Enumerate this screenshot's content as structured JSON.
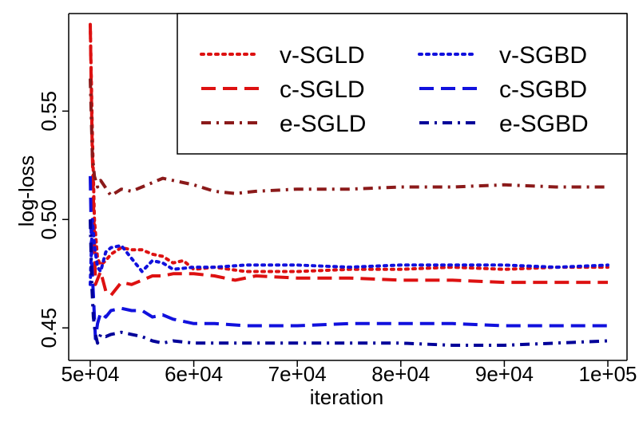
{
  "chart_data": {
    "type": "line",
    "title": "",
    "xlabel": "iteration",
    "ylabel": "log-loss",
    "xlim": [
      50000,
      100000
    ],
    "ylim": [
      0.435,
      0.595
    ],
    "x_ticks": [
      50000,
      60000,
      70000,
      80000,
      90000,
      100000
    ],
    "x_tick_labels": [
      "5e+04",
      "6e+04",
      "7e+04",
      "8e+04",
      "9e+04",
      "1e+05"
    ],
    "y_ticks": [
      0.45,
      0.5,
      0.55
    ],
    "y_tick_labels": [
      "0.45",
      "0.50",
      "0.55"
    ],
    "legend_position": "top-right",
    "colors": {
      "red": "#dd1111",
      "darkred": "#8b1a1a",
      "blue": "#1111dd",
      "navy": "#000099"
    },
    "series": [
      {
        "name": "v-SGLD",
        "color": "#dd1111",
        "style": "dotted",
        "x": [
          50000,
          50200,
          50400,
          50700,
          51000,
          51500,
          52000,
          53000,
          54000,
          55000,
          56000,
          57000,
          58000,
          59000,
          60000,
          62000,
          65000,
          70000,
          75000,
          80000,
          85000,
          90000,
          95000,
          100000
        ],
        "y": [
          0.59,
          0.54,
          0.5,
          0.482,
          0.479,
          0.481,
          0.484,
          0.487,
          0.486,
          0.486,
          0.484,
          0.483,
          0.48,
          0.481,
          0.477,
          0.478,
          0.476,
          0.476,
          0.477,
          0.477,
          0.478,
          0.477,
          0.478,
          0.478
        ]
      },
      {
        "name": "c-SGLD",
        "color": "#dd1111",
        "style": "dashed",
        "x": [
          50000,
          50200,
          50500,
          51000,
          51500,
          52000,
          53000,
          54000,
          55000,
          56000,
          57000,
          58000,
          60000,
          62000,
          64000,
          66000,
          70000,
          75000,
          80000,
          85000,
          90000,
          95000,
          100000
        ],
        "y": [
          0.59,
          0.53,
          0.47,
          0.476,
          0.467,
          0.465,
          0.471,
          0.47,
          0.472,
          0.474,
          0.474,
          0.475,
          0.475,
          0.474,
          0.472,
          0.474,
          0.473,
          0.473,
          0.472,
          0.472,
          0.471,
          0.471,
          0.471
        ]
      },
      {
        "name": "e-SGLD",
        "color": "#8b1a1a",
        "style": "dashdot",
        "x": [
          50000,
          50200,
          50400,
          50700,
          51000,
          52000,
          53000,
          54000,
          55000,
          56000,
          57000,
          58000,
          60000,
          62000,
          64000,
          66000,
          70000,
          75000,
          80000,
          85000,
          90000,
          95000,
          100000
        ],
        "y": [
          0.565,
          0.53,
          0.52,
          0.515,
          0.518,
          0.511,
          0.514,
          0.513,
          0.515,
          0.517,
          0.519,
          0.518,
          0.516,
          0.513,
          0.512,
          0.513,
          0.514,
          0.514,
          0.515,
          0.515,
          0.516,
          0.515,
          0.515
        ]
      },
      {
        "name": "v-SGBD",
        "color": "#1111dd",
        "style": "dotted",
        "x": [
          50000,
          50200,
          50400,
          50700,
          51000,
          51500,
          52000,
          53000,
          54000,
          55000,
          56000,
          57000,
          58000,
          60000,
          62000,
          65000,
          70000,
          75000,
          80000,
          85000,
          90000,
          95000,
          100000
        ],
        "y": [
          0.47,
          0.5,
          0.488,
          0.478,
          0.476,
          0.485,
          0.487,
          0.488,
          0.482,
          0.476,
          0.481,
          0.48,
          0.477,
          0.478,
          0.478,
          0.479,
          0.479,
          0.478,
          0.479,
          0.479,
          0.479,
          0.478,
          0.479
        ]
      },
      {
        "name": "c-SGBD",
        "color": "#1111dd",
        "style": "dashed",
        "x": [
          50000,
          50150,
          50300,
          50500,
          50700,
          51000,
          51500,
          52000,
          53000,
          54000,
          55000,
          56000,
          57000,
          58000,
          60000,
          62000,
          65000,
          70000,
          75000,
          80000,
          85000,
          90000,
          95000,
          100000
        ],
        "y": [
          0.52,
          0.48,
          0.465,
          0.445,
          0.452,
          0.457,
          0.455,
          0.458,
          0.459,
          0.458,
          0.458,
          0.455,
          0.456,
          0.454,
          0.452,
          0.452,
          0.451,
          0.451,
          0.452,
          0.452,
          0.452,
          0.451,
          0.451,
          0.451
        ]
      },
      {
        "name": "e-SGBD",
        "color": "#000099",
        "style": "dashdot",
        "x": [
          50000,
          50150,
          50300,
          50500,
          50700,
          51000,
          51500,
          52000,
          53000,
          54000,
          55000,
          56000,
          57000,
          58000,
          60000,
          62000,
          65000,
          70000,
          75000,
          80000,
          85000,
          90000,
          95000,
          100000
        ],
        "y": [
          0.5,
          0.47,
          0.455,
          0.447,
          0.443,
          0.447,
          0.446,
          0.447,
          0.448,
          0.447,
          0.446,
          0.444,
          0.443,
          0.444,
          0.443,
          0.443,
          0.443,
          0.443,
          0.443,
          0.443,
          0.442,
          0.442,
          0.443,
          0.444
        ]
      }
    ]
  }
}
